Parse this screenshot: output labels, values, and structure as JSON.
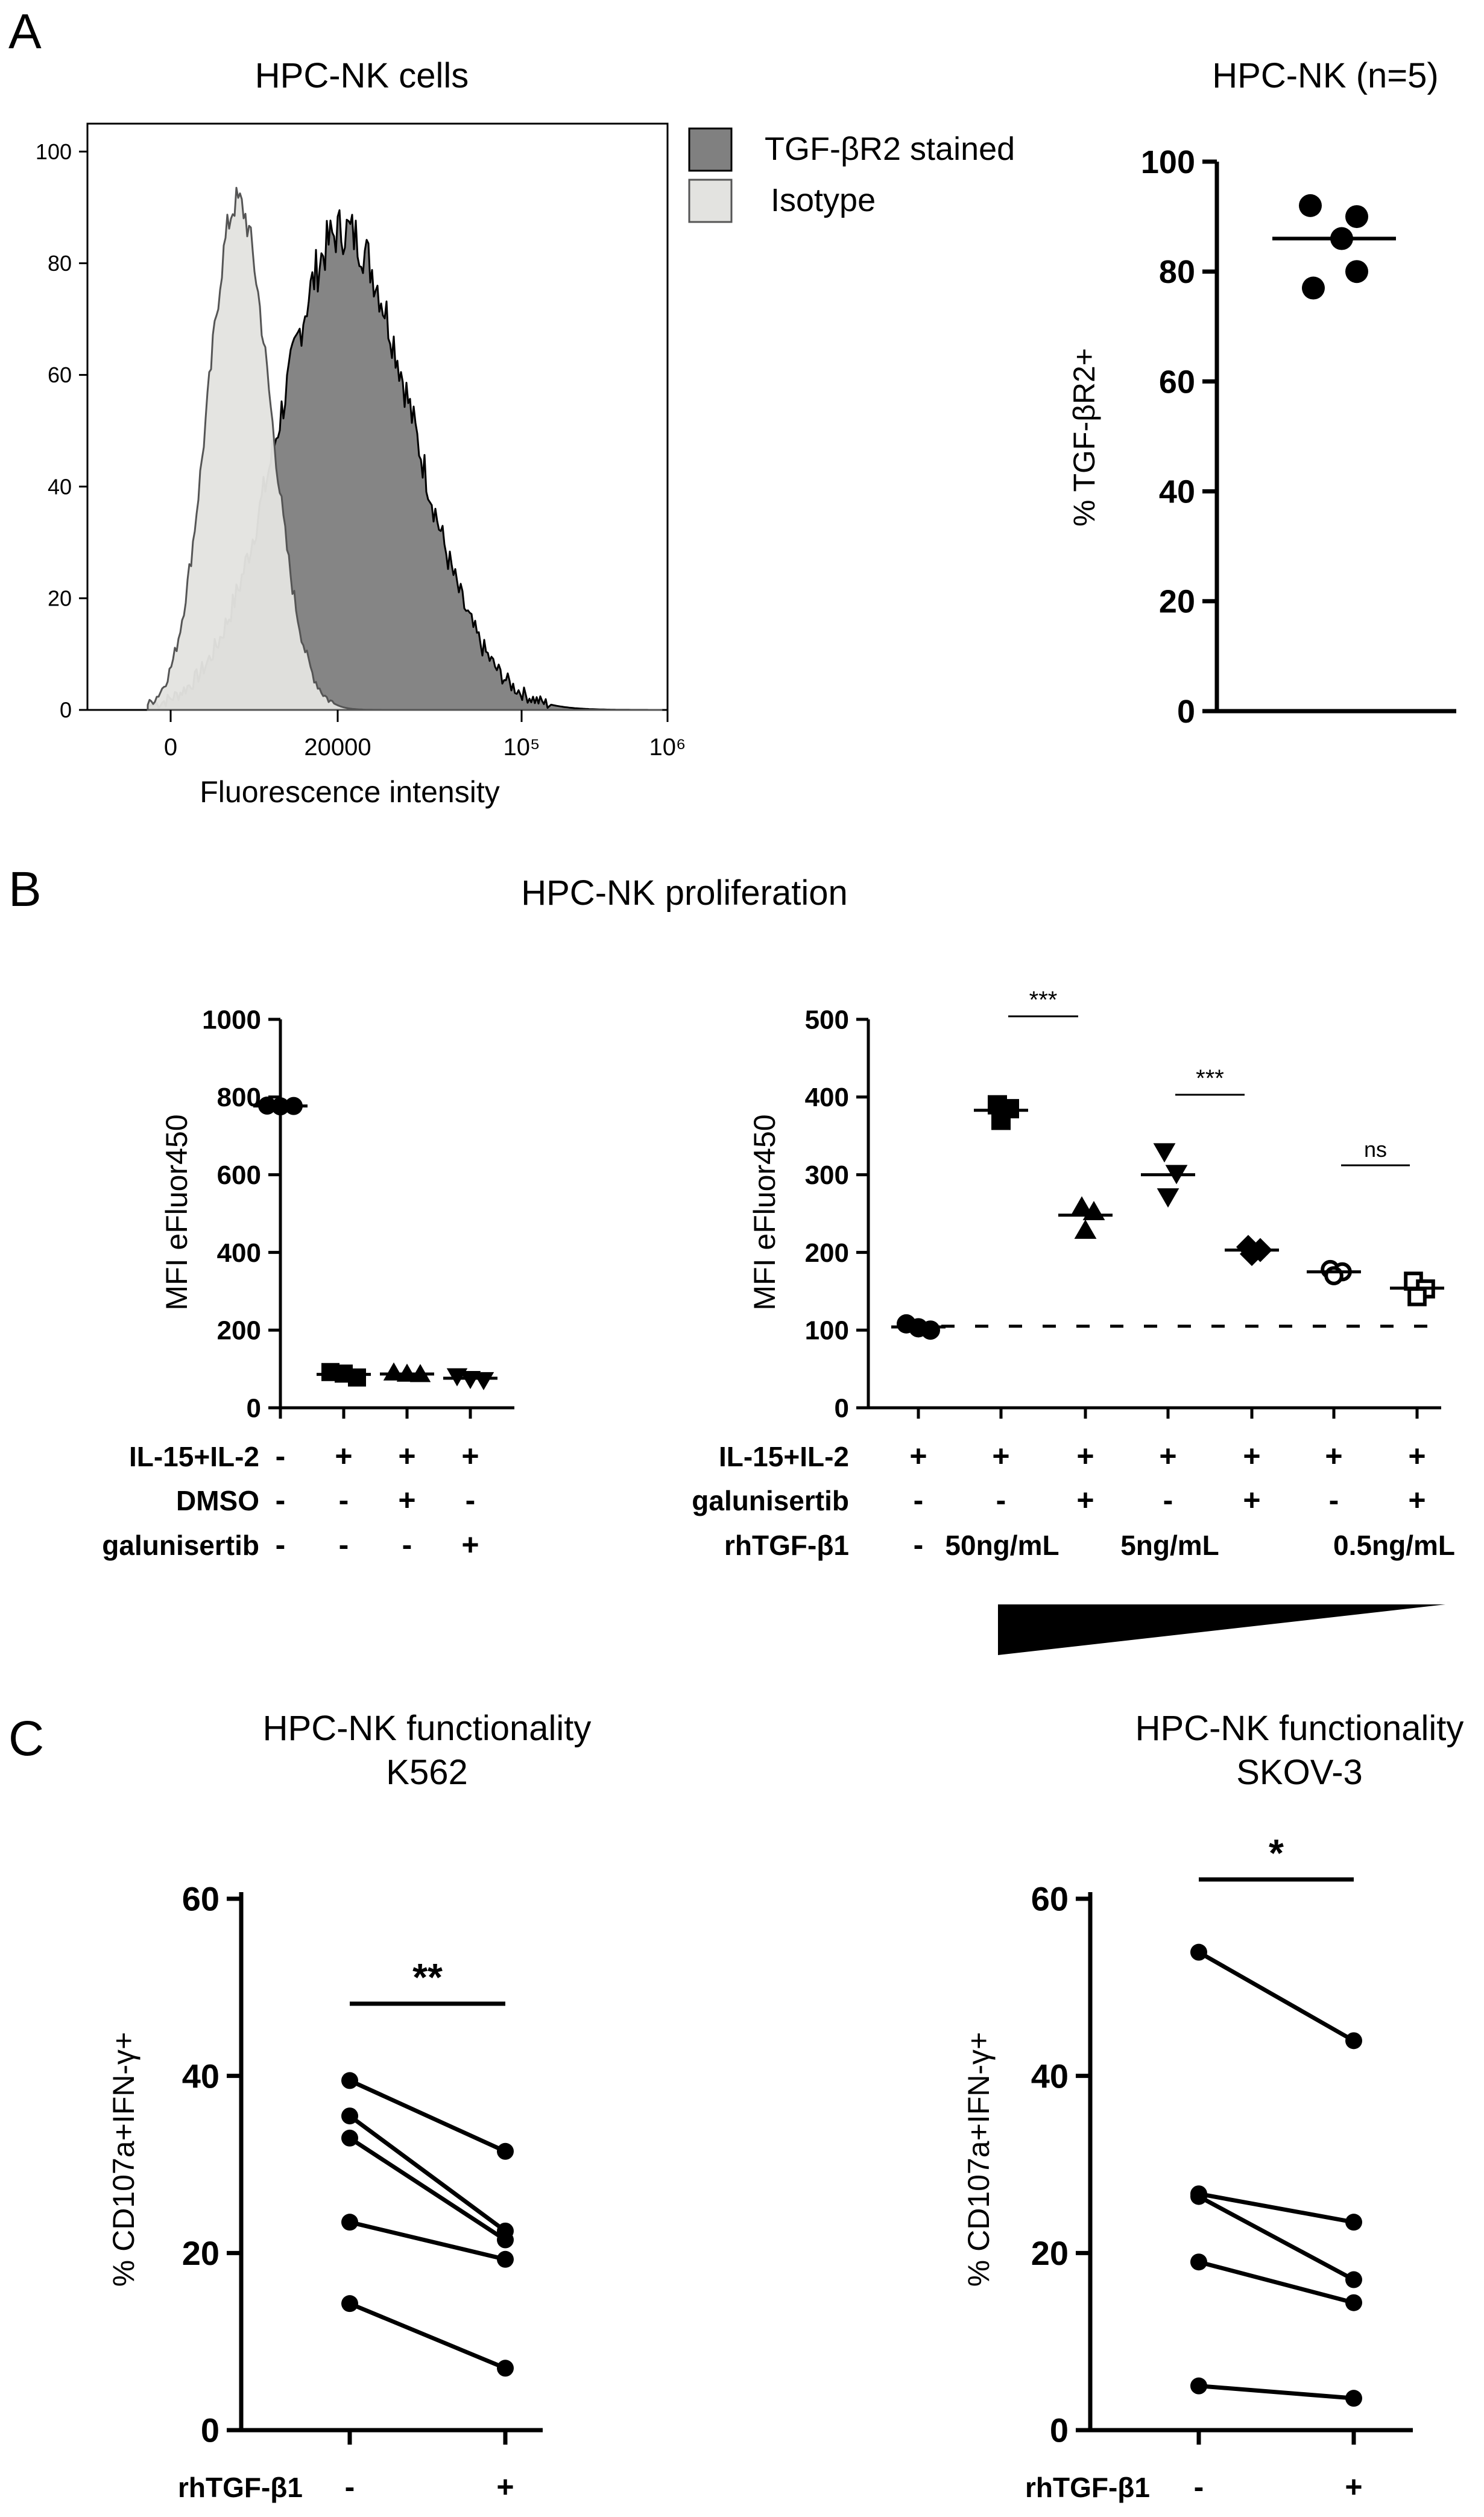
{
  "panel_letters": [
    "A",
    "B",
    "C"
  ],
  "colors": {
    "ink": "#000000",
    "stained_fill": "#808080",
    "isotype_fill": "#e3e3e0"
  },
  "chart_data": [
    {
      "id": "histogram",
      "type": "area",
      "title": "HPC-NK cells",
      "xlabel": "Fluorescence intensity",
      "ylabel": "",
      "ylim": [
        0,
        105
      ],
      "y_ticks": [
        0,
        20,
        40,
        60,
        80,
        100
      ],
      "x_ticks": [
        "0",
        "20000",
        "10⁵",
        "10⁶"
      ],
      "legend": [
        "TGF-βR2 stained",
        "Isotype"
      ],
      "legend_position": "top-right",
      "series": [
        {
          "name": "Isotype",
          "peak_center": 8000,
          "peak_height": 91
        },
        {
          "name": "TGF-βR2 stained",
          "peak_center": 21000,
          "peak_height": 86
        }
      ]
    },
    {
      "id": "scatter_tgfbr2",
      "type": "scatter",
      "title": "HPC-NK (n=5)",
      "ylabel": "% TGF-βR2+",
      "ylim": [
        0,
        100
      ],
      "y_ticks": [
        "0",
        "20",
        "40",
        "60",
        "80",
        "100"
      ],
      "values": [
        92,
        90,
        86,
        80,
        77
      ],
      "mean": 86
    },
    {
      "id": "prolif_controls",
      "type": "scatter",
      "subtitle": "HPC-NK proliferation",
      "ylabel": "MFI eFluor450",
      "ylim": [
        0,
        1000
      ],
      "y_ticks": [
        "0",
        "200",
        "400",
        "600",
        "800",
        "1000"
      ],
      "row_labels": [
        "IL-15+IL-2",
        "DMSO",
        "galunisertib"
      ],
      "columns": [
        {
          "signs": [
            "-",
            "-",
            "-"
          ],
          "marker": "circle",
          "values": [
            778,
            776,
            777
          ],
          "mean": 777
        },
        {
          "signs": [
            "+",
            "-",
            "-"
          ],
          "marker": "square",
          "values": [
            92,
            88,
            78
          ],
          "mean": 86
        },
        {
          "signs": [
            "+",
            "+",
            "-"
          ],
          "marker": "triangle",
          "values": [
            90,
            87,
            86
          ],
          "mean": 87
        },
        {
          "signs": [
            "+",
            "-",
            "+"
          ],
          "marker": "triangle-down",
          "values": [
            82,
            75,
            72
          ],
          "mean": 76
        }
      ]
    },
    {
      "id": "prolif_tgfb",
      "type": "scatter",
      "ylabel": "MFI eFluor450",
      "ylim": [
        0,
        500
      ],
      "y_ticks": [
        "0",
        "100",
        "200",
        "300",
        "400",
        "500"
      ],
      "baseline": 105,
      "row_labels": [
        "IL-15+IL-2",
        "galunisertib",
        "rhTGF-β1"
      ],
      "dose_labels": [
        "50ng/mL",
        "5ng/mL",
        "0.5ng/mL"
      ],
      "columns": [
        {
          "signs": [
            "+",
            "-",
            "-"
          ],
          "marker": "circle",
          "values": [
            108,
            103,
            100
          ],
          "mean": 104
        },
        {
          "signs": [
            "+",
            "-"
          ],
          "marker": "square",
          "values": [
            390,
            385,
            370
          ],
          "mean": 383
        },
        {
          "signs": [
            "+",
            "+"
          ],
          "marker": "triangle",
          "values": [
            258,
            252,
            228
          ],
          "mean": 248
        },
        {
          "signs": [
            "+",
            "-"
          ],
          "marker": "triangle-down",
          "values": [
            330,
            302,
            272
          ],
          "mean": 300
        },
        {
          "signs": [
            "+",
            "+"
          ],
          "marker": "diamond",
          "values": [
            207,
            203,
            198
          ],
          "mean": 203
        },
        {
          "signs": [
            "+",
            "-"
          ],
          "marker": "open-circle",
          "values": [
            178,
            175,
            170
          ],
          "mean": 175
        },
        {
          "signs": [
            "+",
            "+"
          ],
          "marker": "open-square",
          "values": [
            163,
            153,
            143
          ],
          "mean": 154
        }
      ],
      "significance": [
        {
          "from": 1,
          "to": 2,
          "label": "***"
        },
        {
          "from": 3,
          "to": 4,
          "label": "***"
        },
        {
          "from": 5,
          "to": 6,
          "label": "ns"
        }
      ]
    },
    {
      "id": "func_k562",
      "type": "line",
      "title": [
        "HPC-NK functionality",
        "K562"
      ],
      "ylabel": "% CD107a+IFN-γ+",
      "xlabel": "rhTGF-β1",
      "categories": [
        "-",
        "+"
      ],
      "ylim": [
        0,
        60
      ],
      "y_ticks": [
        "0",
        "20",
        "40",
        "60"
      ],
      "pairs": [
        [
          39.5,
          31.5
        ],
        [
          35.5,
          22.5
        ],
        [
          33.0,
          21.5
        ],
        [
          23.5,
          19.3
        ],
        [
          14.3,
          7.0
        ]
      ],
      "significance": "**"
    },
    {
      "id": "func_skov3",
      "type": "line",
      "title": [
        "HPC-NK functionality",
        "SKOV-3"
      ],
      "ylabel": "% CD107a+IFN-γ+",
      "xlabel": "rhTGF-β1",
      "categories": [
        "-",
        "+"
      ],
      "ylim": [
        0,
        60
      ],
      "y_ticks": [
        "0",
        "20",
        "40",
        "60"
      ],
      "pairs": [
        [
          54.0,
          44.0
        ],
        [
          26.7,
          23.5
        ],
        [
          26.4,
          17.0
        ],
        [
          19.0,
          14.4
        ],
        [
          5.0,
          3.6
        ]
      ],
      "significance": "*"
    }
  ]
}
